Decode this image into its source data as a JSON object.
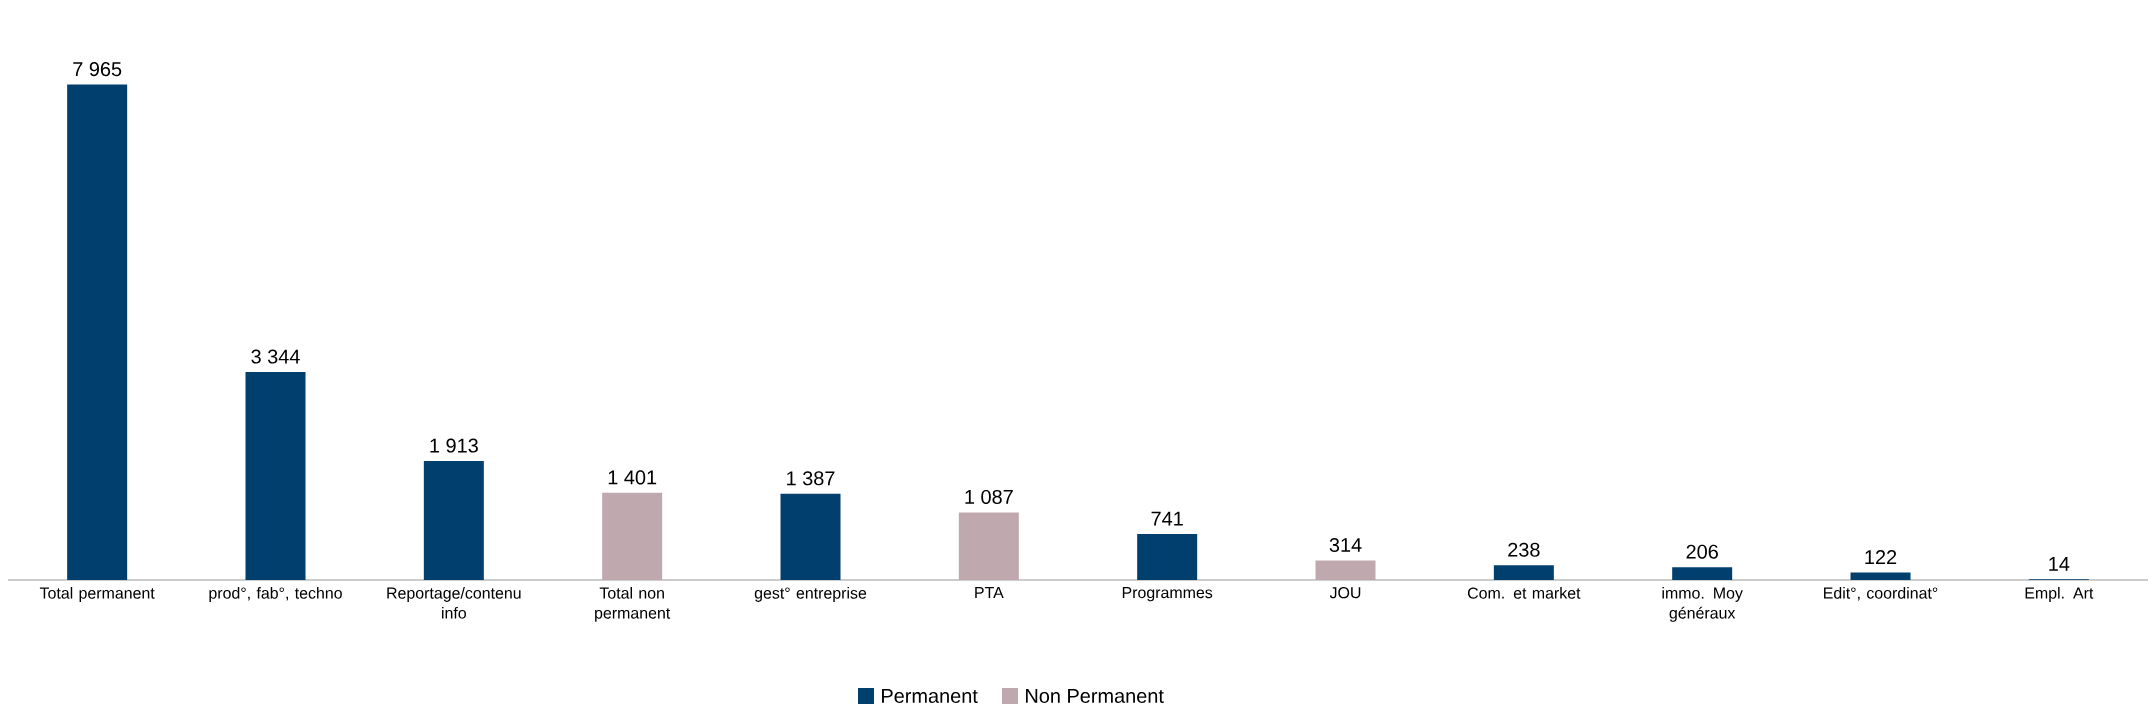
{
  "chart_data": {
    "type": "bar",
    "categories": [
      "Total permanent",
      "prod°, fab°, techno",
      "Reportage/contenu info",
      "Total non permanent",
      "gest° entreprise",
      "PTA",
      "Programmes",
      "JOU",
      "Com. et market",
      "immo. Moy généraux",
      "Edit°, coordinat°",
      "Empl. Art"
    ],
    "series": [
      {
        "name": "Permanent",
        "color": "#003f6e",
        "values": [
          7965,
          3344,
          1913,
          null,
          1387,
          null,
          741,
          null,
          238,
          206,
          122,
          14
        ],
        "value_labels": [
          "7 965",
          "3 344",
          "1 913",
          null,
          "1 387",
          null,
          "741",
          null,
          "238",
          "206",
          "122",
          "14"
        ]
      },
      {
        "name": "Non Permanent",
        "color": "#c0a9ae",
        "values": [
          null,
          null,
          null,
          1401,
          null,
          1087,
          null,
          314,
          null,
          null,
          null,
          null
        ],
        "value_labels": [
          null,
          null,
          null,
          "1 401",
          null,
          "1 087",
          null,
          "314",
          null,
          null,
          null,
          null
        ]
      }
    ],
    "legend": "bottom"
  }
}
